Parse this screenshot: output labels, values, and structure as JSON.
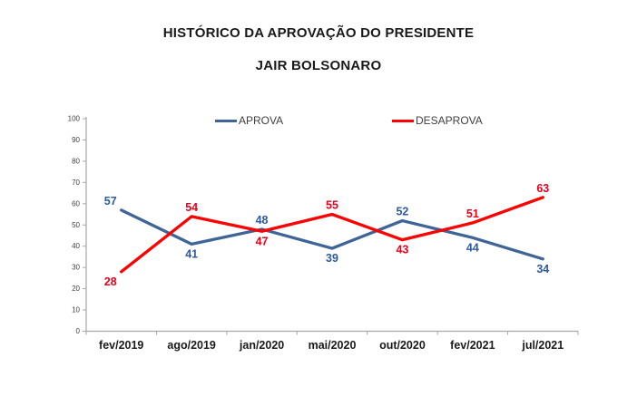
{
  "title": {
    "line1": "HISTÓRICO DA APROVAÇÃO DO PRESIDENTE",
    "line2": "JAIR BOLSONARO"
  },
  "chart_data": {
    "type": "line",
    "title": "HISTÓRICO DA APROVAÇÃO DO PRESIDENTE JAIR BOLSONARO",
    "categories": [
      "fev/2019",
      "ago/2019",
      "jan/2020",
      "mai/2020",
      "out/2020",
      "fev/2021",
      "jul/2021"
    ],
    "series": [
      {
        "name": "APROVA",
        "color": "#3F6497",
        "label_color": "#2E5B9C",
        "values": [
          57,
          41,
          48,
          39,
          52,
          44,
          34
        ],
        "label_pos": [
          "above",
          "below",
          "above",
          "below",
          "above",
          "below",
          "below"
        ]
      },
      {
        "name": "DESAPROVA",
        "color": "#FF0000",
        "label_color": "#E8001C",
        "values": [
          28,
          54,
          47,
          55,
          43,
          51,
          63
        ],
        "label_pos": [
          "below",
          "above",
          "below",
          "above",
          "below",
          "above",
          "above"
        ]
      }
    ],
    "xlabel": "",
    "ylabel": "",
    "ylim": [
      0,
      100
    ],
    "yticks": [
      0,
      10,
      20,
      30,
      40,
      50,
      60,
      70,
      80,
      90,
      100
    ],
    "grid": false,
    "legend_position": "top",
    "axis_color": "#A6A6A6",
    "tick_label_color": "#404040",
    "category_label_color": "#1A1A1A"
  }
}
